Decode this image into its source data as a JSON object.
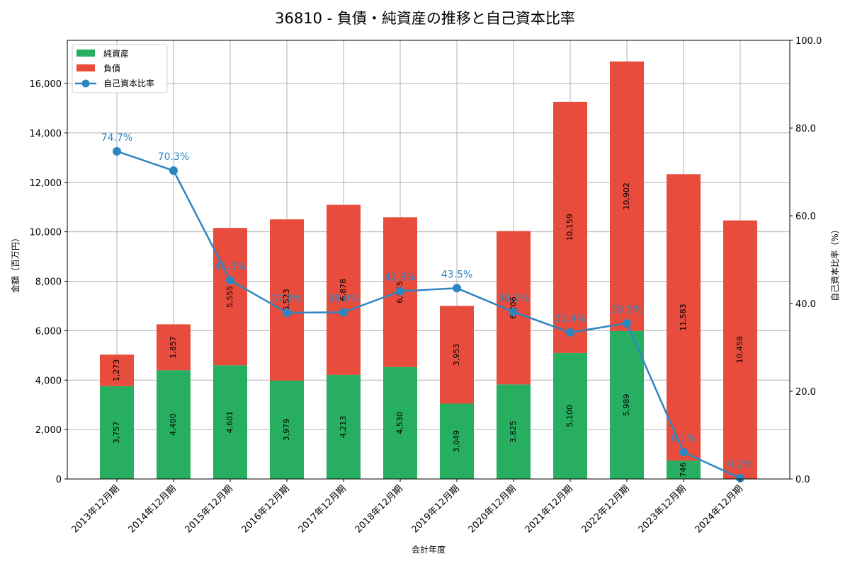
{
  "chart_data": {
    "type": "bar",
    "title": "36810 - 負債・純資産の推移と自己資本比率",
    "xlabel": "会計年度",
    "ylabel": "金額（百万円）",
    "y2label": "自己資本比率（%）",
    "ylim": [
      0,
      17700
    ],
    "y2lim": [
      0,
      100
    ],
    "yticks": [
      "0",
      "2,000",
      "4,000",
      "6,000",
      "8,000",
      "10,000",
      "12,000",
      "14,000",
      "16,000"
    ],
    "y2ticks": [
      "0.0",
      "20.0",
      "40.0",
      "60.0",
      "80.0",
      "100.0"
    ],
    "categories": [
      "2013年12月期",
      "2014年12月期",
      "2015年12月期",
      "2016年12月期",
      "2017年12月期",
      "2018年12月期",
      "2019年12月期",
      "2020年12月期",
      "2021年12月期",
      "2022年12月期",
      "2023年12月期",
      "2024年12月期"
    ],
    "series": [
      {
        "name": "純資産",
        "type": "bar",
        "stacked": true,
        "color": "#27ae60",
        "values": [
          3757,
          4400,
          4601,
          3979,
          4213,
          4530,
          3049,
          3825,
          5100,
          5989,
          746,
          2
        ],
        "labels": [
          "3,757",
          "4,400",
          "4,601",
          "3,979",
          "4,213",
          "4,530",
          "3,049",
          "3,825",
          "5,100",
          "5,989",
          "746",
          "2"
        ]
      },
      {
        "name": "負債",
        "type": "bar",
        "stacked": true,
        "color": "#e74c3c",
        "values": [
          1273,
          1857,
          5555,
          6523,
          6878,
          6055,
          3953,
          6206,
          10159,
          10902,
          11583,
          10458
        ],
        "labels": [
          "1,273",
          "1,857",
          "5,555",
          "6,523",
          "6,878",
          "6,055",
          "3,953",
          "6,206",
          "10,159",
          "10,902",
          "11,583",
          "10,458"
        ]
      },
      {
        "name": "自己資本比率",
        "type": "line",
        "axis": "right",
        "color": "#2e86c1",
        "values": [
          74.7,
          70.3,
          45.3,
          37.9,
          38.0,
          42.8,
          43.5,
          38.1,
          33.4,
          35.5,
          6.1,
          0.2
        ],
        "labels": [
          "74.7%",
          "70.3%",
          "45.3%",
          "37.9%",
          "38.0%",
          "42.8%",
          "43.5%",
          "38.1%",
          "33.4%",
          "35.5%",
          "6.1%",
          "0.2%"
        ]
      }
    ],
    "legend_position": "upper left",
    "grid": true
  }
}
